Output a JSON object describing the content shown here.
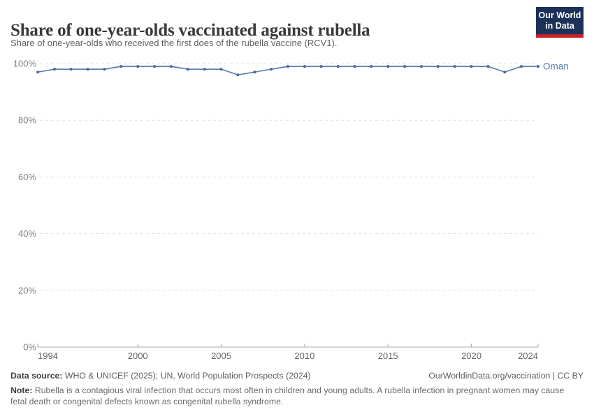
{
  "header": {
    "title": "Share of one-year-olds vaccinated against rubella",
    "subtitle": "Share of one-year-olds who received the first does of the rubella vaccine (RCV1).",
    "logo": {
      "line1": "Our World",
      "line2": "in Data"
    }
  },
  "chart_data": {
    "type": "line",
    "title": "Share of one-year-olds vaccinated against rubella",
    "xlabel": "",
    "ylabel": "",
    "xlim": [
      1994,
      2024
    ],
    "ylim": [
      0,
      100
    ],
    "x_ticks": [
      1994,
      2000,
      2005,
      2010,
      2015,
      2020,
      2024
    ],
    "y_ticks": [
      0,
      20,
      40,
      60,
      80,
      100
    ],
    "y_tick_suffix": "%",
    "grid": "horizontal-dashed",
    "legend_position": "end-of-line-label",
    "series": [
      {
        "name": "Oman",
        "x": [
          1994,
          1995,
          1996,
          1997,
          1998,
          1999,
          2000,
          2001,
          2002,
          2003,
          2004,
          2005,
          2006,
          2007,
          2008,
          2009,
          2010,
          2011,
          2012,
          2013,
          2014,
          2015,
          2016,
          2017,
          2018,
          2019,
          2020,
          2021,
          2022,
          2023,
          2024
        ],
        "values": [
          97,
          98,
          98,
          98,
          98,
          99,
          99,
          99,
          99,
          98,
          98,
          98,
          96,
          97,
          98,
          99,
          99,
          99,
          99,
          99,
          99,
          99,
          99,
          99,
          99,
          99,
          99,
          99,
          97,
          99,
          99
        ]
      }
    ]
  },
  "footer": {
    "source_label": "Data source:",
    "source_text": " WHO & UNICEF (2025); UN, World Population Prospects (2024)",
    "rights": "OurWorldinData.org/vaccination | CC BY",
    "note_label": "Note:",
    "note_text": " Rubella is a contagious viral infection that occurs most often in children and young adults. A rubella infection in pregnant women may cause fetal death or congenital defects known as congenital rubella syndrome."
  },
  "colors": {
    "line": "#6180ae",
    "point": "#46699f",
    "end_label": "#5b79ab",
    "grid": "#e0e0e0",
    "axis": "#a8a8a8",
    "x_label": "#646464",
    "y_label": "#7d7d7d",
    "title": "#3a3a3a",
    "subtitle": "#5f5f5f",
    "footer_text": "#5e5e5e",
    "footer_bold": "#3f3f3f",
    "note_text": "#6b6b6b",
    "logo_bg": "#1b3158",
    "logo_bar": "#c5232b"
  }
}
